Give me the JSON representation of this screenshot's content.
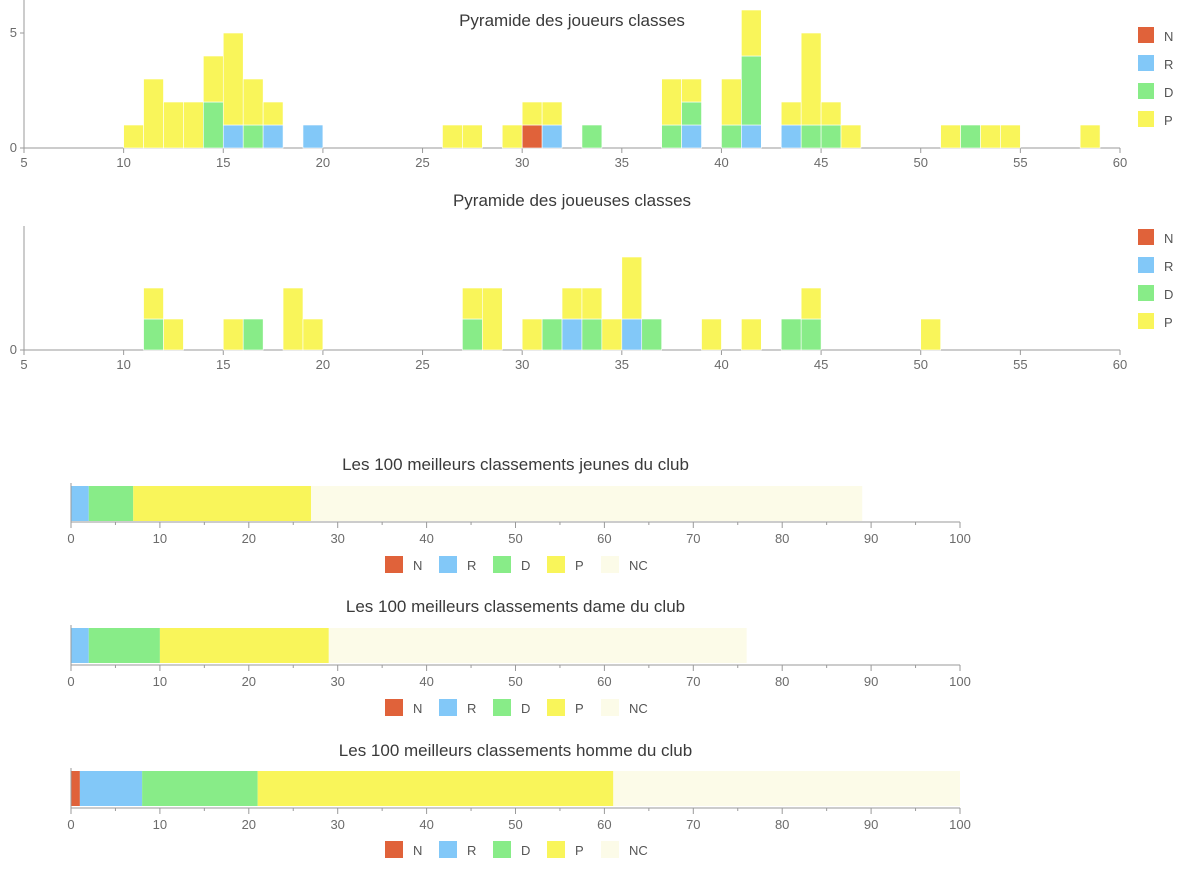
{
  "legend_colors": {
    "N": "#e0623a",
    "R": "#82c8f8",
    "D": "#88ec88",
    "P": "#f9f55a",
    "NC": "#fcfbe8"
  },
  "chart_data": [
    {
      "id": "hist-men",
      "type": "bar",
      "stacked": true,
      "title": "Pyramide des joueurs classes",
      "x_ticks": [
        5,
        10,
        15,
        20,
        25,
        30,
        35,
        40,
        45,
        50,
        55,
        60
      ],
      "y_ticks": [
        0,
        5
      ],
      "xlim": [
        5,
        60
      ],
      "ylim": [
        0,
        6.5
      ],
      "legend": [
        "N",
        "R",
        "D",
        "P"
      ],
      "legend_position": "right",
      "bins": [
        {
          "x": 10.5,
          "N": 0,
          "R": 0,
          "D": 0,
          "P": 1
        },
        {
          "x": 11.5,
          "N": 0,
          "R": 0,
          "D": 0,
          "P": 3
        },
        {
          "x": 12.5,
          "N": 0,
          "R": 0,
          "D": 0,
          "P": 2
        },
        {
          "x": 13.5,
          "N": 0,
          "R": 0,
          "D": 0,
          "P": 2
        },
        {
          "x": 14.5,
          "N": 0,
          "R": 0,
          "D": 2,
          "P": 2
        },
        {
          "x": 15.5,
          "N": 0,
          "R": 1,
          "D": 0,
          "P": 4
        },
        {
          "x": 16.5,
          "N": 0,
          "R": 0,
          "D": 1,
          "P": 2
        },
        {
          "x": 17.5,
          "N": 0,
          "R": 1,
          "D": 0,
          "P": 1
        },
        {
          "x": 19.5,
          "N": 0,
          "R": 1,
          "D": 0,
          "P": 0
        },
        {
          "x": 26.5,
          "N": 0,
          "R": 0,
          "D": 0,
          "P": 1
        },
        {
          "x": 27.5,
          "N": 0,
          "R": 0,
          "D": 0,
          "P": 1
        },
        {
          "x": 29.5,
          "N": 0,
          "R": 0,
          "D": 0,
          "P": 1
        },
        {
          "x": 30.5,
          "N": 1,
          "R": 0,
          "D": 0,
          "P": 1
        },
        {
          "x": 31.5,
          "N": 0,
          "R": 1,
          "D": 0,
          "P": 1
        },
        {
          "x": 33.5,
          "N": 0,
          "R": 0,
          "D": 1,
          "P": 0
        },
        {
          "x": 37.5,
          "N": 0,
          "R": 0,
          "D": 1,
          "P": 2
        },
        {
          "x": 38.5,
          "N": 0,
          "R": 1,
          "D": 1,
          "P": 1
        },
        {
          "x": 40.5,
          "N": 0,
          "R": 0,
          "D": 1,
          "P": 2
        },
        {
          "x": 41.5,
          "N": 0,
          "R": 1,
          "D": 3,
          "P": 2
        },
        {
          "x": 43.5,
          "N": 0,
          "R": 1,
          "D": 0,
          "P": 1
        },
        {
          "x": 44.5,
          "N": 0,
          "R": 0,
          "D": 1,
          "P": 4
        },
        {
          "x": 45.5,
          "N": 0,
          "R": 0,
          "D": 1,
          "P": 1
        },
        {
          "x": 46.5,
          "N": 0,
          "R": 0,
          "D": 0,
          "P": 1
        },
        {
          "x": 51.5,
          "N": 0,
          "R": 0,
          "D": 0,
          "P": 1
        },
        {
          "x": 52.5,
          "N": 0,
          "R": 0,
          "D": 1,
          "P": 0
        },
        {
          "x": 53.5,
          "N": 0,
          "R": 0,
          "D": 0,
          "P": 1
        },
        {
          "x": 54.5,
          "N": 0,
          "R": 0,
          "D": 0,
          "P": 1
        },
        {
          "x": 58.5,
          "N": 0,
          "R": 0,
          "D": 0,
          "P": 1
        }
      ]
    },
    {
      "id": "hist-women",
      "type": "bar",
      "stacked": true,
      "title": "Pyramide des joueuses classes",
      "x_ticks": [
        5,
        10,
        15,
        20,
        25,
        30,
        35,
        40,
        45,
        50,
        55,
        60
      ],
      "y_ticks": [
        0
      ],
      "xlim": [
        5,
        60
      ],
      "ylim": [
        0,
        4
      ],
      "legend": [
        "N",
        "R",
        "D",
        "P"
      ],
      "legend_position": "right",
      "bins": [
        {
          "x": 11.5,
          "N": 0,
          "R": 0,
          "D": 1,
          "P": 1
        },
        {
          "x": 12.5,
          "N": 0,
          "R": 0,
          "D": 0,
          "P": 1
        },
        {
          "x": 15.5,
          "N": 0,
          "R": 0,
          "D": 0,
          "P": 1
        },
        {
          "x": 16.5,
          "N": 0,
          "R": 0,
          "D": 1,
          "P": 0
        },
        {
          "x": 18.5,
          "N": 0,
          "R": 0,
          "D": 0,
          "P": 2
        },
        {
          "x": 19.5,
          "N": 0,
          "R": 0,
          "D": 0,
          "P": 1
        },
        {
          "x": 27.5,
          "N": 0,
          "R": 0,
          "D": 1,
          "P": 1
        },
        {
          "x": 28.5,
          "N": 0,
          "R": 0,
          "D": 0,
          "P": 2
        },
        {
          "x": 30.5,
          "N": 0,
          "R": 0,
          "D": 0,
          "P": 1
        },
        {
          "x": 31.5,
          "N": 0,
          "R": 0,
          "D": 1,
          "P": 0
        },
        {
          "x": 32.5,
          "N": 0,
          "R": 1,
          "D": 0,
          "P": 1
        },
        {
          "x": 33.5,
          "N": 0,
          "R": 0,
          "D": 1,
          "P": 1
        },
        {
          "x": 34.5,
          "N": 0,
          "R": 0,
          "D": 0,
          "P": 1
        },
        {
          "x": 35.5,
          "N": 0,
          "R": 1,
          "D": 0,
          "P": 2
        },
        {
          "x": 36.5,
          "N": 0,
          "R": 0,
          "D": 1,
          "P": 0
        },
        {
          "x": 39.5,
          "N": 0,
          "R": 0,
          "D": 0,
          "P": 1
        },
        {
          "x": 41.5,
          "N": 0,
          "R": 0,
          "D": 0,
          "P": 1
        },
        {
          "x": 43.5,
          "N": 0,
          "R": 0,
          "D": 1,
          "P": 0
        },
        {
          "x": 44.5,
          "N": 0,
          "R": 0,
          "D": 1,
          "P": 1
        },
        {
          "x": 50.5,
          "N": 0,
          "R": 0,
          "D": 0,
          "P": 1
        }
      ]
    },
    {
      "id": "bar-jeunes",
      "type": "bar",
      "orientation": "horizontal",
      "stacked": true,
      "title": "Les 100 meilleurs classements jeunes du club",
      "x_ticks": [
        0,
        10,
        20,
        30,
        40,
        50,
        60,
        70,
        80,
        90,
        100
      ],
      "xlim": [
        0,
        100
      ],
      "legend": [
        "N",
        "R",
        "D",
        "P",
        "NC"
      ],
      "legend_position": "bottom",
      "segments": {
        "N": 0,
        "R": 2,
        "D": 5,
        "P": 20,
        "NC": 62
      }
    },
    {
      "id": "bar-dame",
      "type": "bar",
      "orientation": "horizontal",
      "stacked": true,
      "title": "Les 100 meilleurs classements dame du club",
      "x_ticks": [
        0,
        10,
        20,
        30,
        40,
        50,
        60,
        70,
        80,
        90,
        100
      ],
      "xlim": [
        0,
        100
      ],
      "legend": [
        "N",
        "R",
        "D",
        "P",
        "NC"
      ],
      "legend_position": "bottom",
      "segments": {
        "N": 0,
        "R": 2,
        "D": 8,
        "P": 19,
        "NC": 47
      }
    },
    {
      "id": "bar-homme",
      "type": "bar",
      "orientation": "horizontal",
      "stacked": true,
      "title": "Les 100 meilleurs classements homme du club",
      "x_ticks": [
        0,
        10,
        20,
        30,
        40,
        50,
        60,
        70,
        80,
        90,
        100
      ],
      "xlim": [
        0,
        100
      ],
      "legend": [
        "N",
        "R",
        "D",
        "P",
        "NC"
      ],
      "legend_position": "bottom",
      "segments": {
        "N": 1,
        "R": 7,
        "D": 13,
        "P": 40,
        "NC": 39
      }
    }
  ]
}
